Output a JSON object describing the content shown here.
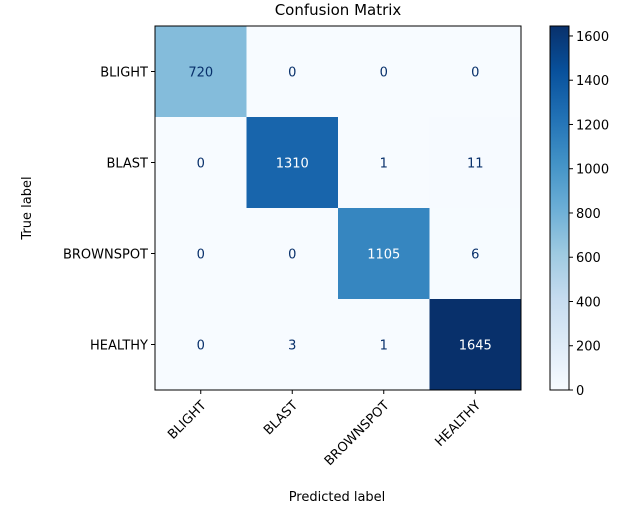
{
  "chart_data": {
    "type": "heatmap",
    "title": "Confusion Matrix",
    "xlabel": "Predicted label",
    "ylabel": "True label",
    "x_categories": [
      "BLIGHT",
      "BLAST",
      "BROWNSPOT",
      "HEALTHY"
    ],
    "y_categories": [
      "BLIGHT",
      "BLAST",
      "BROWNSPOT",
      "HEALTHY"
    ],
    "values": [
      [
        720,
        0,
        0,
        0
      ],
      [
        0,
        1310,
        1,
        11
      ],
      [
        0,
        0,
        1105,
        6
      ],
      [
        0,
        3,
        1,
        1645
      ]
    ],
    "colormap": "Blues",
    "colorbar": {
      "min": 0,
      "max": 1645,
      "ticks": [
        0,
        200,
        400,
        600,
        800,
        1000,
        1200,
        1400,
        1600
      ]
    }
  }
}
